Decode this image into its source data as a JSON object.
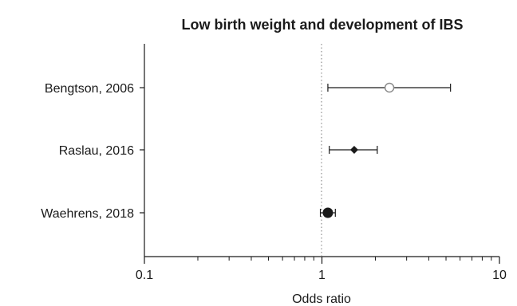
{
  "chart_data": {
    "type": "forest",
    "title": "Low birth weight and development of IBS",
    "xlabel": "Odds ratio",
    "xscale": "log",
    "xlim": [
      0.1,
      10
    ],
    "xticks": [
      0.1,
      1,
      10
    ],
    "xtick_labels": [
      "0.1",
      "1",
      "10"
    ],
    "reference_line": 1,
    "studies": [
      {
        "label": "Bengtson, 2006",
        "or": 2.4,
        "ci_low": 1.08,
        "ci_high": 5.3,
        "marker": "open-circle"
      },
      {
        "label": "Raslau, 2016",
        "or": 1.52,
        "ci_low": 1.1,
        "ci_high": 2.05,
        "marker": "filled-diamond"
      },
      {
        "label": "Waehrens, 2018",
        "or": 1.08,
        "ci_low": 0.98,
        "ci_high": 1.19,
        "marker": "filled-circle"
      }
    ],
    "colors": {
      "open_marker": "#8c8c8c",
      "filled_marker": "#1a1a1a",
      "reference_line": "#777777"
    },
    "grid": false
  }
}
